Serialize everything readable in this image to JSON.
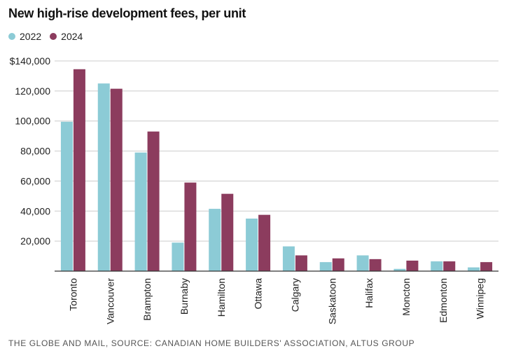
{
  "title": "New high-rise development fees, per unit",
  "source": "THE GLOBE AND MAIL, SOURCE: CANADIAN HOME BUILDERS' ASSOCIATION, ALTUS GROUP",
  "colors": {
    "2022": "#8ccbd6",
    "2024": "#8c3c5e",
    "grid": "#cccccc",
    "axis": "#333333"
  },
  "chart_data": {
    "type": "bar",
    "categories": [
      "Toronto",
      "Vancouver",
      "Brampton",
      "Burnaby",
      "Hamilton",
      "Ottawa",
      "Calgary",
      "Saskatoon",
      "Halifax",
      "Moncton",
      "Edmonton",
      "Winnipeg"
    ],
    "series": [
      {
        "name": "2022",
        "values": [
          99500,
          125000,
          79000,
          19000,
          41500,
          35000,
          16500,
          6000,
          10500,
          1500,
          6500,
          2500
        ]
      },
      {
        "name": "2024",
        "values": [
          134500,
          121500,
          93000,
          59000,
          51500,
          37500,
          10500,
          8500,
          8000,
          7000,
          6500,
          6000
        ]
      }
    ],
    "ylim": [
      0,
      140000
    ],
    "yticks": [
      20000,
      40000,
      60000,
      80000,
      100000,
      120000,
      140000
    ],
    "ytick_labels": [
      "20,000",
      "40,000",
      "60,000",
      "80,000",
      "100,000",
      "120,000",
      "$140,000"
    ],
    "legend": "top-left",
    "grid": true
  }
}
